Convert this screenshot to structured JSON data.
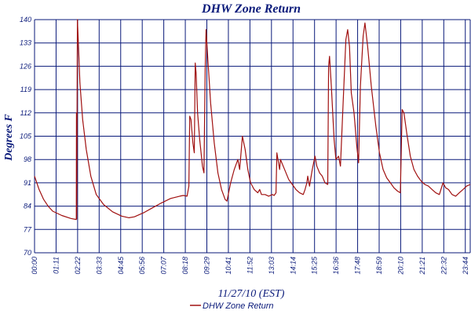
{
  "chart_data": {
    "type": "line",
    "title": "DHW Zone Return",
    "xlabel": "11/27/10 (EST)",
    "ylabel": "Degrees F",
    "x_ticks": [
      "00:00",
      "01:11",
      "02:22",
      "03:33",
      "04:45",
      "05:56",
      "07:07",
      "08:18",
      "09:29",
      "10:41",
      "11:52",
      "13:03",
      "14:14",
      "15:25",
      "16:36",
      "17:48",
      "18:59",
      "20:10",
      "21:21",
      "22:32",
      "23:44"
    ],
    "y_ticks": [
      "70",
      "77",
      "84",
      "91",
      "98",
      "105",
      "112",
      "119",
      "126",
      "133",
      "140"
    ],
    "ylim": [
      70,
      140
    ],
    "xlim_hours": [
      0,
      24
    ],
    "grid": true,
    "legend_position": "bottom-center",
    "colors": {
      "series": "#a01010",
      "grid": "#0a1a7a",
      "text": "#0a1a7a"
    },
    "series": [
      {
        "name": "DHW Zone Return",
        "points": [
          [
            0.0,
            93
          ],
          [
            0.25,
            89
          ],
          [
            0.5,
            86
          ],
          [
            0.75,
            84
          ],
          [
            1.0,
            82.5
          ],
          [
            1.5,
            81.2
          ],
          [
            2.0,
            80.3
          ],
          [
            2.3,
            80.0
          ],
          [
            2.31,
            112
          ],
          [
            2.32,
            80.2
          ],
          [
            2.36,
            140
          ],
          [
            2.42,
            132
          ],
          [
            2.5,
            121
          ],
          [
            2.65,
            110
          ],
          [
            2.85,
            101
          ],
          [
            3.1,
            93
          ],
          [
            3.4,
            87.5
          ],
          [
            3.8,
            84.5
          ],
          [
            4.3,
            82.3
          ],
          [
            4.8,
            81.0
          ],
          [
            5.2,
            80.5
          ],
          [
            5.5,
            80.8
          ],
          [
            6.0,
            82.0
          ],
          [
            6.5,
            83.5
          ],
          [
            7.0,
            85.0
          ],
          [
            7.5,
            86.3
          ],
          [
            8.0,
            87.0
          ],
          [
            8.2,
            87.2
          ],
          [
            8.4,
            87.0
          ],
          [
            8.5,
            90
          ],
          [
            8.55,
            111
          ],
          [
            8.62,
            110
          ],
          [
            8.72,
            103
          ],
          [
            8.8,
            100
          ],
          [
            8.85,
            127
          ],
          [
            8.9,
            124
          ],
          [
            8.98,
            112
          ],
          [
            9.1,
            104
          ],
          [
            9.25,
            96
          ],
          [
            9.33,
            94
          ],
          [
            9.4,
            125
          ],
          [
            9.45,
            137
          ],
          [
            9.55,
            128
          ],
          [
            9.7,
            115
          ],
          [
            9.9,
            103
          ],
          [
            10.1,
            94
          ],
          [
            10.3,
            89
          ],
          [
            10.5,
            86
          ],
          [
            10.6,
            85.5
          ],
          [
            10.8,
            91
          ],
          [
            11.0,
            95
          ],
          [
            11.2,
            98
          ],
          [
            11.3,
            95
          ],
          [
            11.45,
            105
          ],
          [
            11.6,
            101
          ],
          [
            11.75,
            95
          ],
          [
            11.9,
            91
          ],
          [
            12.1,
            89
          ],
          [
            12.3,
            88
          ],
          [
            12.4,
            89
          ],
          [
            12.5,
            87.5
          ],
          [
            12.7,
            87.5
          ],
          [
            12.9,
            87
          ],
          [
            13.1,
            87.5
          ],
          [
            13.2,
            87.2
          ],
          [
            13.3,
            88
          ],
          [
            13.35,
            100
          ],
          [
            13.5,
            95
          ],
          [
            13.55,
            98
          ],
          [
            13.7,
            96
          ],
          [
            13.85,
            94
          ],
          [
            14.0,
            92
          ],
          [
            14.2,
            90.5
          ],
          [
            14.4,
            89
          ],
          [
            14.6,
            88
          ],
          [
            14.8,
            87.5
          ],
          [
            14.9,
            89
          ],
          [
            15.0,
            91
          ],
          [
            15.05,
            93
          ],
          [
            15.15,
            90
          ],
          [
            15.3,
            95
          ],
          [
            15.45,
            99
          ],
          [
            15.55,
            96
          ],
          [
            15.7,
            94
          ],
          [
            15.85,
            93
          ],
          [
            16.0,
            91
          ],
          [
            16.15,
            90.5
          ],
          [
            16.2,
            126
          ],
          [
            16.25,
            129
          ],
          [
            16.35,
            120
          ],
          [
            16.5,
            104
          ],
          [
            16.6,
            98
          ],
          [
            16.75,
            99
          ],
          [
            16.85,
            96
          ],
          [
            17.0,
            115
          ],
          [
            17.15,
            134
          ],
          [
            17.25,
            137
          ],
          [
            17.35,
            132
          ],
          [
            17.45,
            118
          ],
          [
            17.6,
            112
          ],
          [
            17.75,
            102
          ],
          [
            17.85,
            97
          ],
          [
            17.95,
            120
          ],
          [
            18.1,
            135
          ],
          [
            18.2,
            139
          ],
          [
            18.35,
            132
          ],
          [
            18.55,
            120
          ],
          [
            18.8,
            108
          ],
          [
            19.0,
            100
          ],
          [
            19.2,
            95
          ],
          [
            19.4,
            92.5
          ],
          [
            19.6,
            91
          ],
          [
            19.8,
            89.5
          ],
          [
            20.0,
            88.5
          ],
          [
            20.15,
            88
          ],
          [
            20.25,
            113
          ],
          [
            20.35,
            112
          ],
          [
            20.5,
            106
          ],
          [
            20.7,
            99
          ],
          [
            20.9,
            95
          ],
          [
            21.1,
            93
          ],
          [
            21.3,
            91.5
          ],
          [
            21.5,
            90.5
          ],
          [
            21.7,
            90
          ],
          [
            21.9,
            89
          ],
          [
            22.1,
            88
          ],
          [
            22.3,
            87.5
          ],
          [
            22.5,
            91
          ],
          [
            22.65,
            89.5
          ],
          [
            22.8,
            89
          ],
          [
            23.0,
            87.5
          ],
          [
            23.2,
            87
          ],
          [
            23.4,
            88
          ],
          [
            23.6,
            89
          ],
          [
            23.8,
            90
          ],
          [
            24.0,
            90.5
          ]
        ]
      }
    ]
  }
}
